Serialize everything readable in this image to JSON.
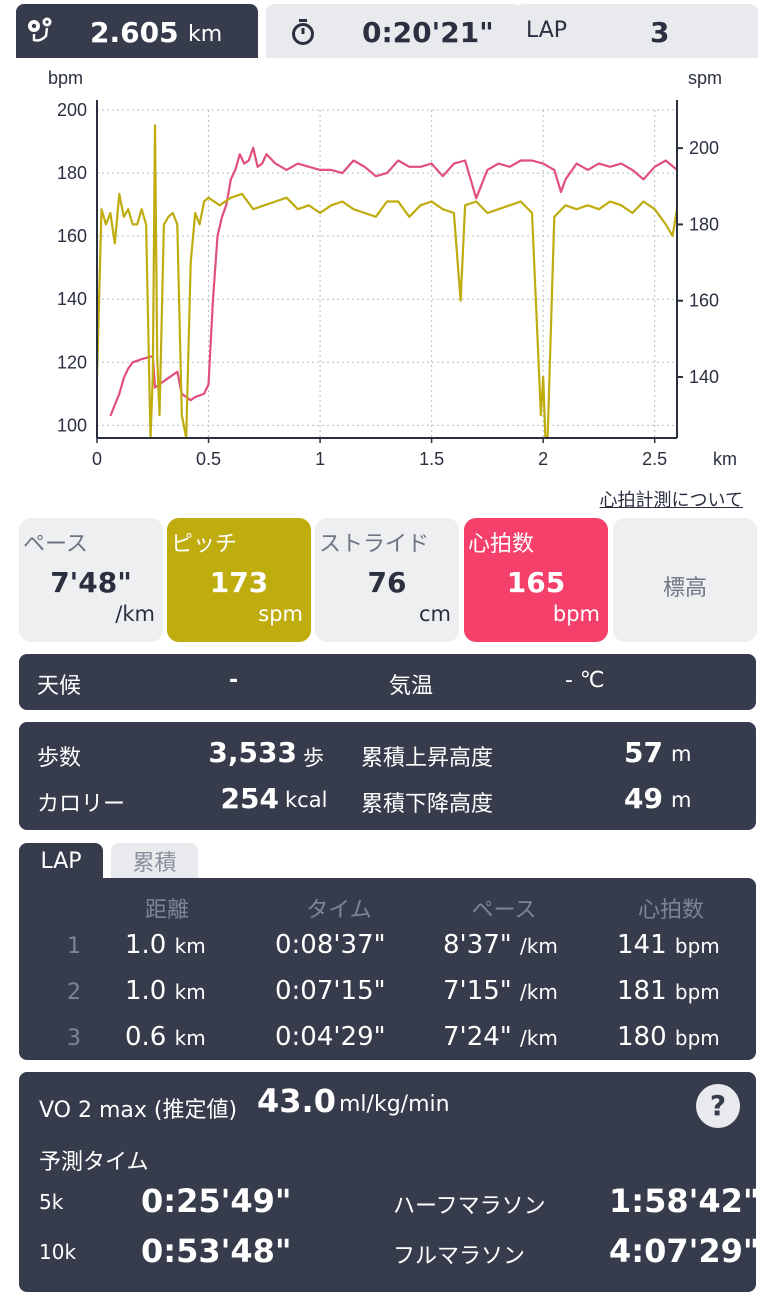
{
  "topbar": {
    "distance_value": "2.605",
    "distance_unit": "km",
    "time_value": "0:20'21\"",
    "lap_label": "LAP",
    "lap_value": "3"
  },
  "chart": {
    "left_unit": "bpm",
    "right_unit": "spm",
    "x_unit": "km"
  },
  "chart_data": {
    "type": "line",
    "xlabel": "km",
    "ylabel_left": "bpm",
    "ylabel_right": "spm",
    "xlim": [
      0,
      2.6
    ],
    "ylim_left": [
      96,
      200
    ],
    "ylim_right": [
      124,
      210
    ],
    "x_ticks": [
      "0",
      "0.5",
      "1",
      "1.5",
      "2",
      "2.5"
    ],
    "y_left_ticks": [
      "100",
      "120",
      "140",
      "160",
      "180",
      "200"
    ],
    "y_right_ticks": [
      "140",
      "160",
      "180",
      "200"
    ],
    "grid": true,
    "series": [
      {
        "axis": "left",
        "color": "#e0507a",
        "x": [
          0.06,
          0.1,
          0.12,
          0.14,
          0.16,
          0.2,
          0.25,
          0.26,
          0.3,
          0.36,
          0.38,
          0.4,
          0.42,
          0.44,
          0.48,
          0.5,
          0.52,
          0.54,
          0.56,
          0.58,
          0.6,
          0.62,
          0.64,
          0.66,
          0.68,
          0.7,
          0.72,
          0.74,
          0.76,
          0.8,
          0.85,
          0.9,
          0.95,
          1.0,
          1.05,
          1.1,
          1.15,
          1.2,
          1.25,
          1.3,
          1.35,
          1.4,
          1.45,
          1.5,
          1.55,
          1.6,
          1.65,
          1.7,
          1.75,
          1.8,
          1.85,
          1.9,
          1.95,
          2.0,
          2.05,
          2.08,
          2.1,
          2.15,
          2.2,
          2.25,
          2.3,
          2.35,
          2.4,
          2.45,
          2.5,
          2.55,
          2.6
        ],
        "values": [
          103,
          110,
          115,
          118,
          120,
          121,
          122,
          112,
          114,
          117,
          110,
          109,
          108,
          109,
          110,
          113,
          140,
          160,
          166,
          170,
          178,
          181,
          186,
          183,
          184,
          188,
          182,
          183,
          186,
          183,
          181,
          183,
          182,
          181,
          181,
          180,
          184,
          182,
          179,
          180,
          184,
          182,
          182,
          183,
          179,
          183,
          184,
          172,
          181,
          183,
          182,
          184,
          184,
          183,
          181,
          174,
          178,
          183,
          181,
          183,
          182,
          183,
          181,
          178,
          182,
          184,
          181
        ]
      },
      {
        "axis": "right",
        "color": "#bfac0f",
        "x": [
          0.0,
          0.02,
          0.04,
          0.06,
          0.08,
          0.1,
          0.12,
          0.14,
          0.16,
          0.18,
          0.2,
          0.22,
          0.24,
          0.25,
          0.26,
          0.27,
          0.28,
          0.3,
          0.32,
          0.34,
          0.36,
          0.38,
          0.4,
          0.42,
          0.44,
          0.46,
          0.48,
          0.5,
          0.55,
          0.6,
          0.65,
          0.7,
          0.75,
          0.8,
          0.85,
          0.9,
          0.95,
          1.0,
          1.05,
          1.1,
          1.15,
          1.2,
          1.25,
          1.3,
          1.35,
          1.4,
          1.45,
          1.5,
          1.55,
          1.6,
          1.63,
          1.65,
          1.7,
          1.75,
          1.8,
          1.85,
          1.9,
          1.95,
          1.99,
          2.0,
          2.01,
          2.02,
          2.05,
          2.1,
          2.15,
          2.2,
          2.25,
          2.3,
          2.35,
          2.4,
          2.45,
          2.5,
          2.55,
          2.58,
          2.6
        ],
        "values": [
          140,
          184,
          180,
          183,
          175,
          188,
          182,
          184,
          180,
          180,
          184,
          180,
          124,
          140,
          206,
          145,
          130,
          180,
          182,
          183,
          180,
          130,
          124,
          170,
          183,
          180,
          186,
          187,
          185,
          187,
          188,
          184,
          185,
          186,
          187,
          184,
          185,
          183,
          185,
          186,
          184,
          183,
          182,
          186,
          186,
          182,
          185,
          186,
          184,
          183,
          160,
          185,
          186,
          183,
          184,
          185,
          186,
          183,
          130,
          140,
          124,
          124,
          182,
          185,
          184,
          185,
          184,
          186,
          185,
          183,
          186,
          184,
          180,
          177,
          184
        ]
      }
    ]
  },
  "hr_link": "心拍計測について",
  "metrics": [
    {
      "label": "ペース",
      "value": "7'48\"",
      "unit": "/km"
    },
    {
      "label": "ピッチ",
      "value": "173",
      "unit": "spm"
    },
    {
      "label": "ストライド",
      "value": "76",
      "unit": "cm"
    },
    {
      "label": "心拍数",
      "value": "165",
      "unit": "bpm"
    },
    {
      "label": "標高"
    }
  ],
  "weather": {
    "weather_label": "天候",
    "weather_value": "-",
    "temp_label": "気温",
    "temp_value": "- ℃"
  },
  "summary": {
    "steps_label": "歩数",
    "steps_value": "3,533",
    "steps_unit": "歩",
    "calories_label": "カロリー",
    "calories_value": "254",
    "calories_unit": "kcal",
    "ascent_label": "累積上昇高度",
    "ascent_value": "57",
    "ascent_unit": "m",
    "descent_label": "累積下降高度",
    "descent_value": "49",
    "descent_unit": "m"
  },
  "tabs": {
    "lap": "LAP",
    "cumulative": "累積"
  },
  "lap_table": {
    "headers": [
      "距離",
      "タイム",
      "ペース",
      "心拍数"
    ],
    "rows": [
      {
        "index": "1",
        "dist": "1.0",
        "dist_unit": "km",
        "time": "0:08'37\"",
        "pace": "8'37\"",
        "pace_unit": "/km",
        "hr": "141",
        "hr_unit": "bpm"
      },
      {
        "index": "2",
        "dist": "1.0",
        "dist_unit": "km",
        "time": "0:07'15\"",
        "pace": "7'15\"",
        "pace_unit": "/km",
        "hr": "181",
        "hr_unit": "bpm"
      },
      {
        "index": "3",
        "dist": "0.6",
        "dist_unit": "km",
        "time": "0:04'29\"",
        "pace": "7'24\"",
        "pace_unit": "/km",
        "hr": "180",
        "hr_unit": "bpm"
      }
    ]
  },
  "vo2": {
    "label": "VO 2 max (推定値)",
    "value": "43.0",
    "unit": "ml/kg/min",
    "help": "?",
    "prediction_label": "予測タイム",
    "r5k_label": "5k",
    "r5k_value": "0:25'49\"",
    "r10k_label": "10k",
    "r10k_value": "0:53'48\"",
    "half_label": "ハーフマラソン",
    "half_value": "1:58'42\"",
    "full_label": "フルマラソン",
    "full_value": "4:07'29\""
  }
}
